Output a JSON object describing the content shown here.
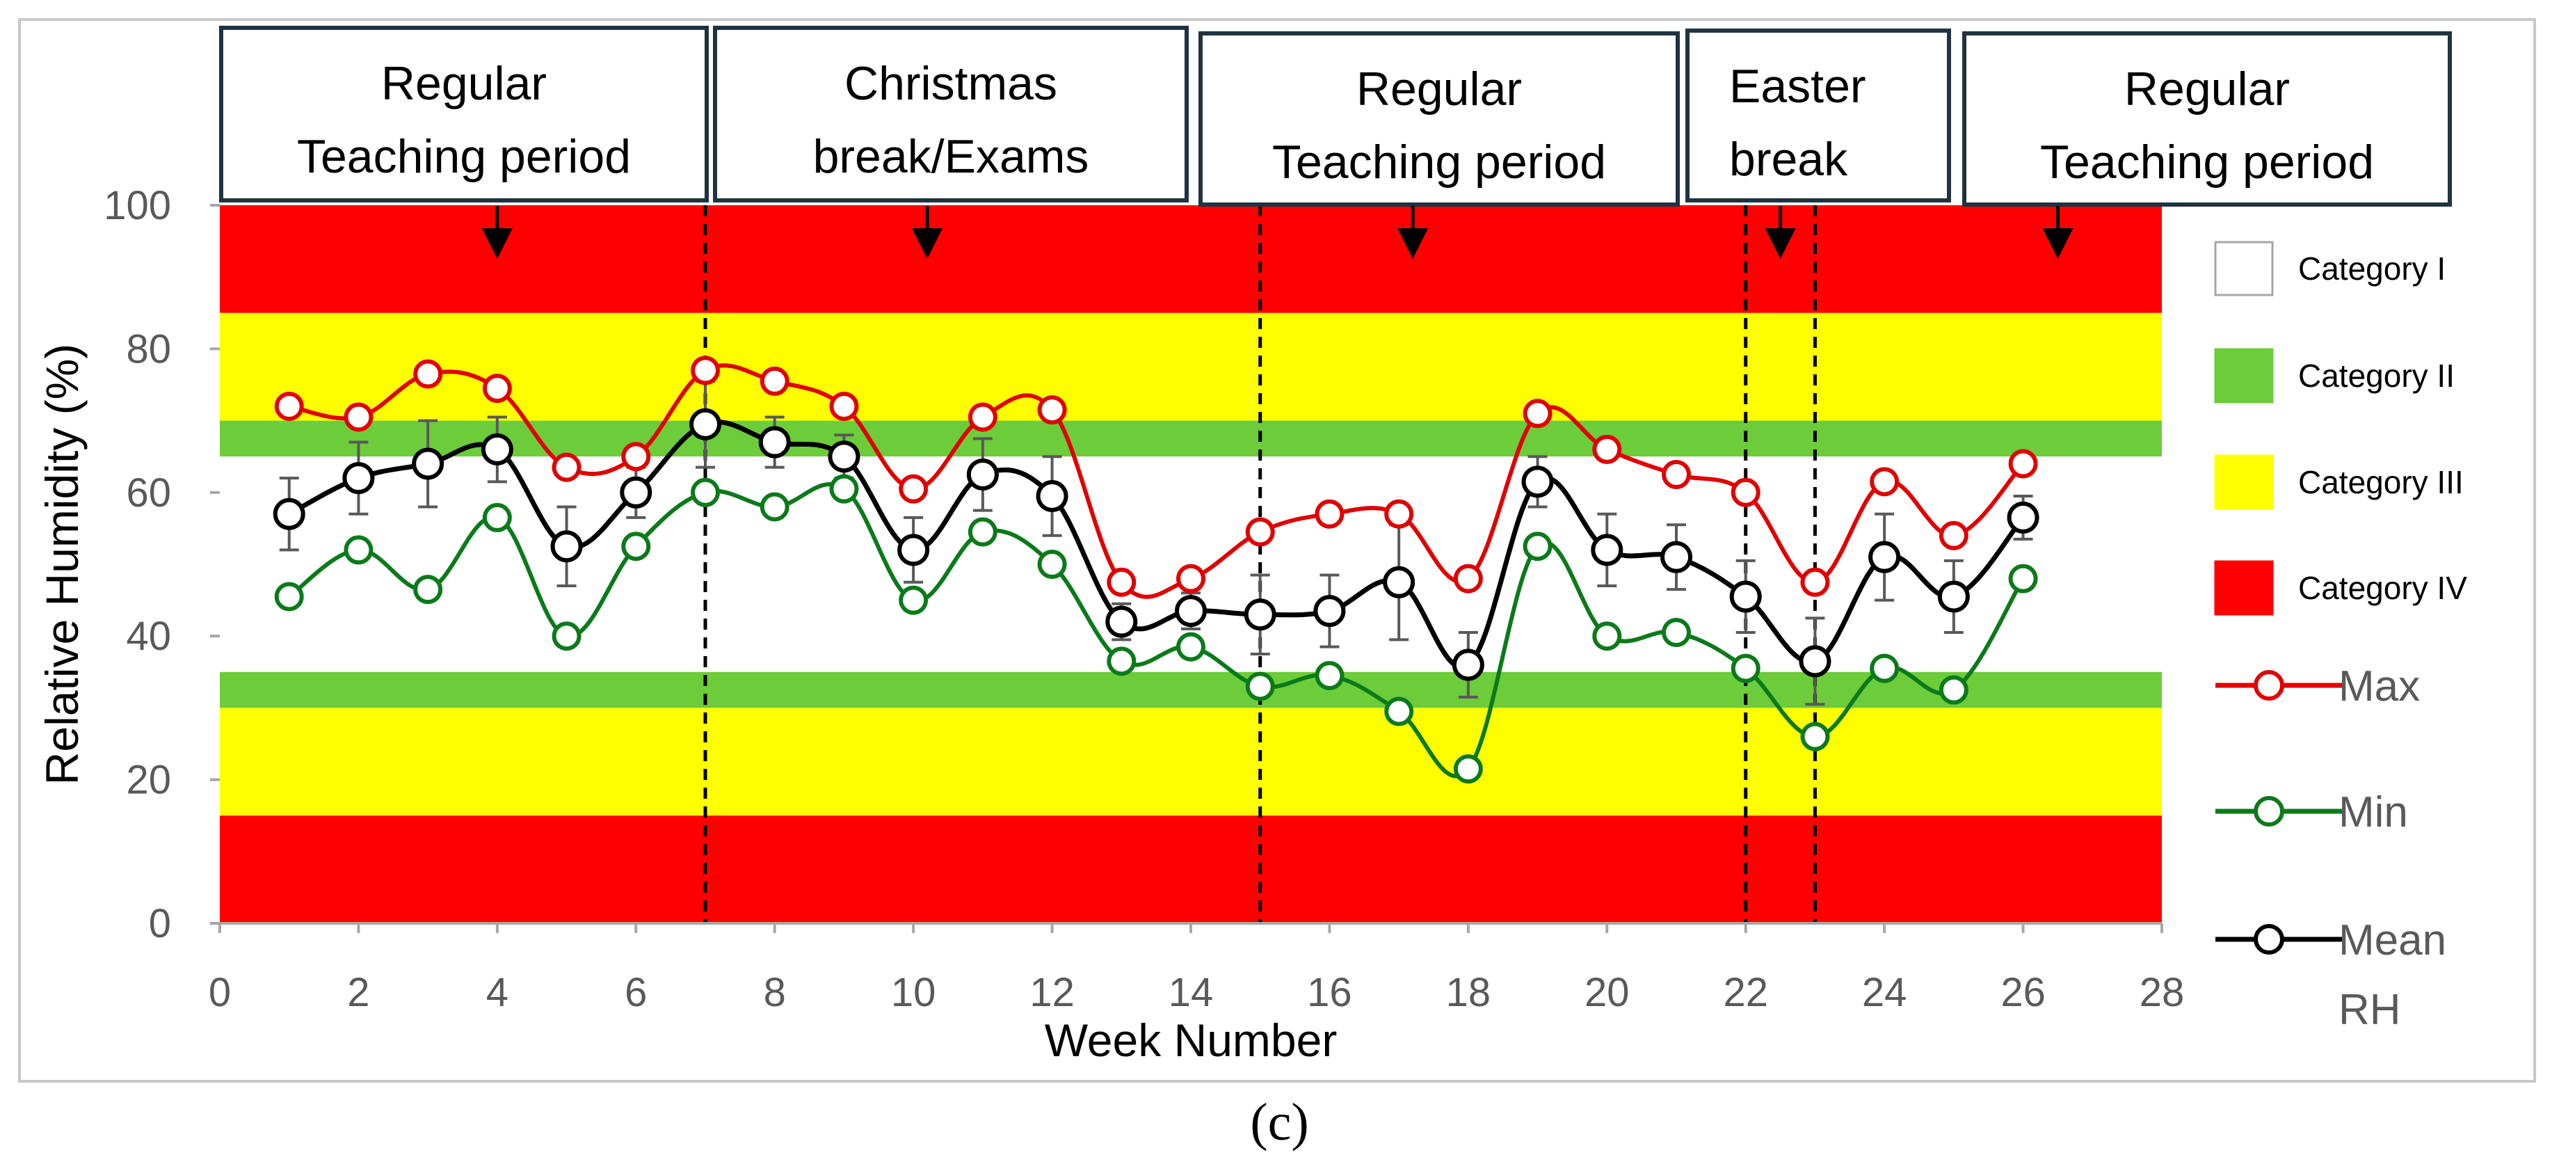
{
  "caption": "(c)",
  "chart_data": {
    "type": "line",
    "title": "",
    "xlabel": "Week Number",
    "ylabel": "Relative Humidity (%)",
    "xlim": [
      0,
      28
    ],
    "ylim": [
      0,
      100
    ],
    "x_ticks": [
      0,
      2,
      4,
      6,
      8,
      10,
      12,
      14,
      16,
      18,
      20,
      22,
      24,
      26,
      28
    ],
    "y_ticks": [
      0,
      20,
      40,
      60,
      80,
      100
    ],
    "x": [
      1,
      2,
      3,
      4,
      5,
      6,
      7,
      8,
      9,
      10,
      11,
      12,
      13,
      14,
      15,
      16,
      17,
      18,
      19,
      20,
      21,
      22,
      23,
      24,
      25,
      26
    ],
    "series": [
      {
        "name": "Max",
        "color": "#e00000",
        "values": [
          72,
          70.5,
          76.5,
          74.5,
          63.5,
          65,
          77,
          75.5,
          72,
          60.5,
          70.5,
          71.5,
          47.5,
          48,
          54.5,
          57,
          57,
          48,
          71,
          66,
          62.5,
          60,
          47.5,
          61.5,
          54,
          64
        ]
      },
      {
        "name": "Min",
        "color": "#0b7a1a",
        "values": [
          45.5,
          52,
          46.5,
          56.5,
          40,
          52.5,
          60,
          58,
          60.5,
          45,
          54.5,
          50,
          36.5,
          38.5,
          33,
          34.5,
          29.5,
          21.5,
          52.5,
          40,
          40.5,
          35.5,
          26,
          35.5,
          32.5,
          48
        ]
      },
      {
        "name": "Mean RH",
        "color": "#000000",
        "values": [
          57,
          62,
          64,
          66,
          52.5,
          60,
          69.5,
          67,
          65,
          52,
          62.5,
          59.5,
          42,
          43.5,
          43,
          43.5,
          47.5,
          36,
          61.5,
          52,
          51,
          45.5,
          36.5,
          51,
          45.5,
          56.5
        ],
        "error": [
          5,
          5,
          6,
          4.5,
          5.5,
          3.5,
          6,
          3.5,
          3,
          4.5,
          5,
          5.5,
          2.5,
          2.5,
          5.5,
          5,
          8,
          4.5,
          3.5,
          5,
          4.5,
          5,
          6,
          6,
          5,
          3
        ]
      }
    ],
    "bands": [
      {
        "from": 85,
        "to": 100,
        "category": "Category IV",
        "color": "#ff0000"
      },
      {
        "from": 70,
        "to": 85,
        "category": "Category III",
        "color": "#ffff00"
      },
      {
        "from": 65,
        "to": 70,
        "category": "Category II",
        "color": "#6dcc3a"
      },
      {
        "from": 35,
        "to": 65,
        "category": "Category I",
        "color": "#ffffff"
      },
      {
        "from": 30,
        "to": 35,
        "category": "Category II",
        "color": "#6dcc3a"
      },
      {
        "from": 15,
        "to": 30,
        "category": "Category III",
        "color": "#ffff00"
      },
      {
        "from": 0,
        "to": 15,
        "category": "Category IV",
        "color": "#ff0000"
      }
    ],
    "vlines": [
      7,
      15,
      22,
      23
    ],
    "periods": [
      {
        "lines": [
          "Regular",
          "Teaching period"
        ],
        "arrow_x": 4
      },
      {
        "lines": [
          "Christmas",
          "break/Exams"
        ],
        "arrow_x": 10.2
      },
      {
        "lines": [
          "Regular",
          "Teaching period"
        ],
        "arrow_x": 17.2
      },
      {
        "lines": [
          "Easter",
          "break"
        ],
        "arrow_x": 22.5
      },
      {
        "lines": [
          "Regular",
          "Teaching period"
        ],
        "arrow_x": 26.5
      }
    ],
    "legend": {
      "position": "right",
      "categories": [
        {
          "label": "Category I",
          "color": "#ffffff"
        },
        {
          "label": "Category II",
          "color": "#6dcc3a"
        },
        {
          "label": "Category III",
          "color": "#ffff00"
        },
        {
          "label": "Category IV",
          "color": "#ff0000"
        }
      ],
      "series": [
        {
          "lines": [
            "Max"
          ],
          "color": "#e00000"
        },
        {
          "lines": [
            "Min"
          ],
          "color": "#0b7a1a"
        },
        {
          "lines": [
            "Mean",
            "RH"
          ],
          "color": "#000000"
        }
      ]
    }
  }
}
